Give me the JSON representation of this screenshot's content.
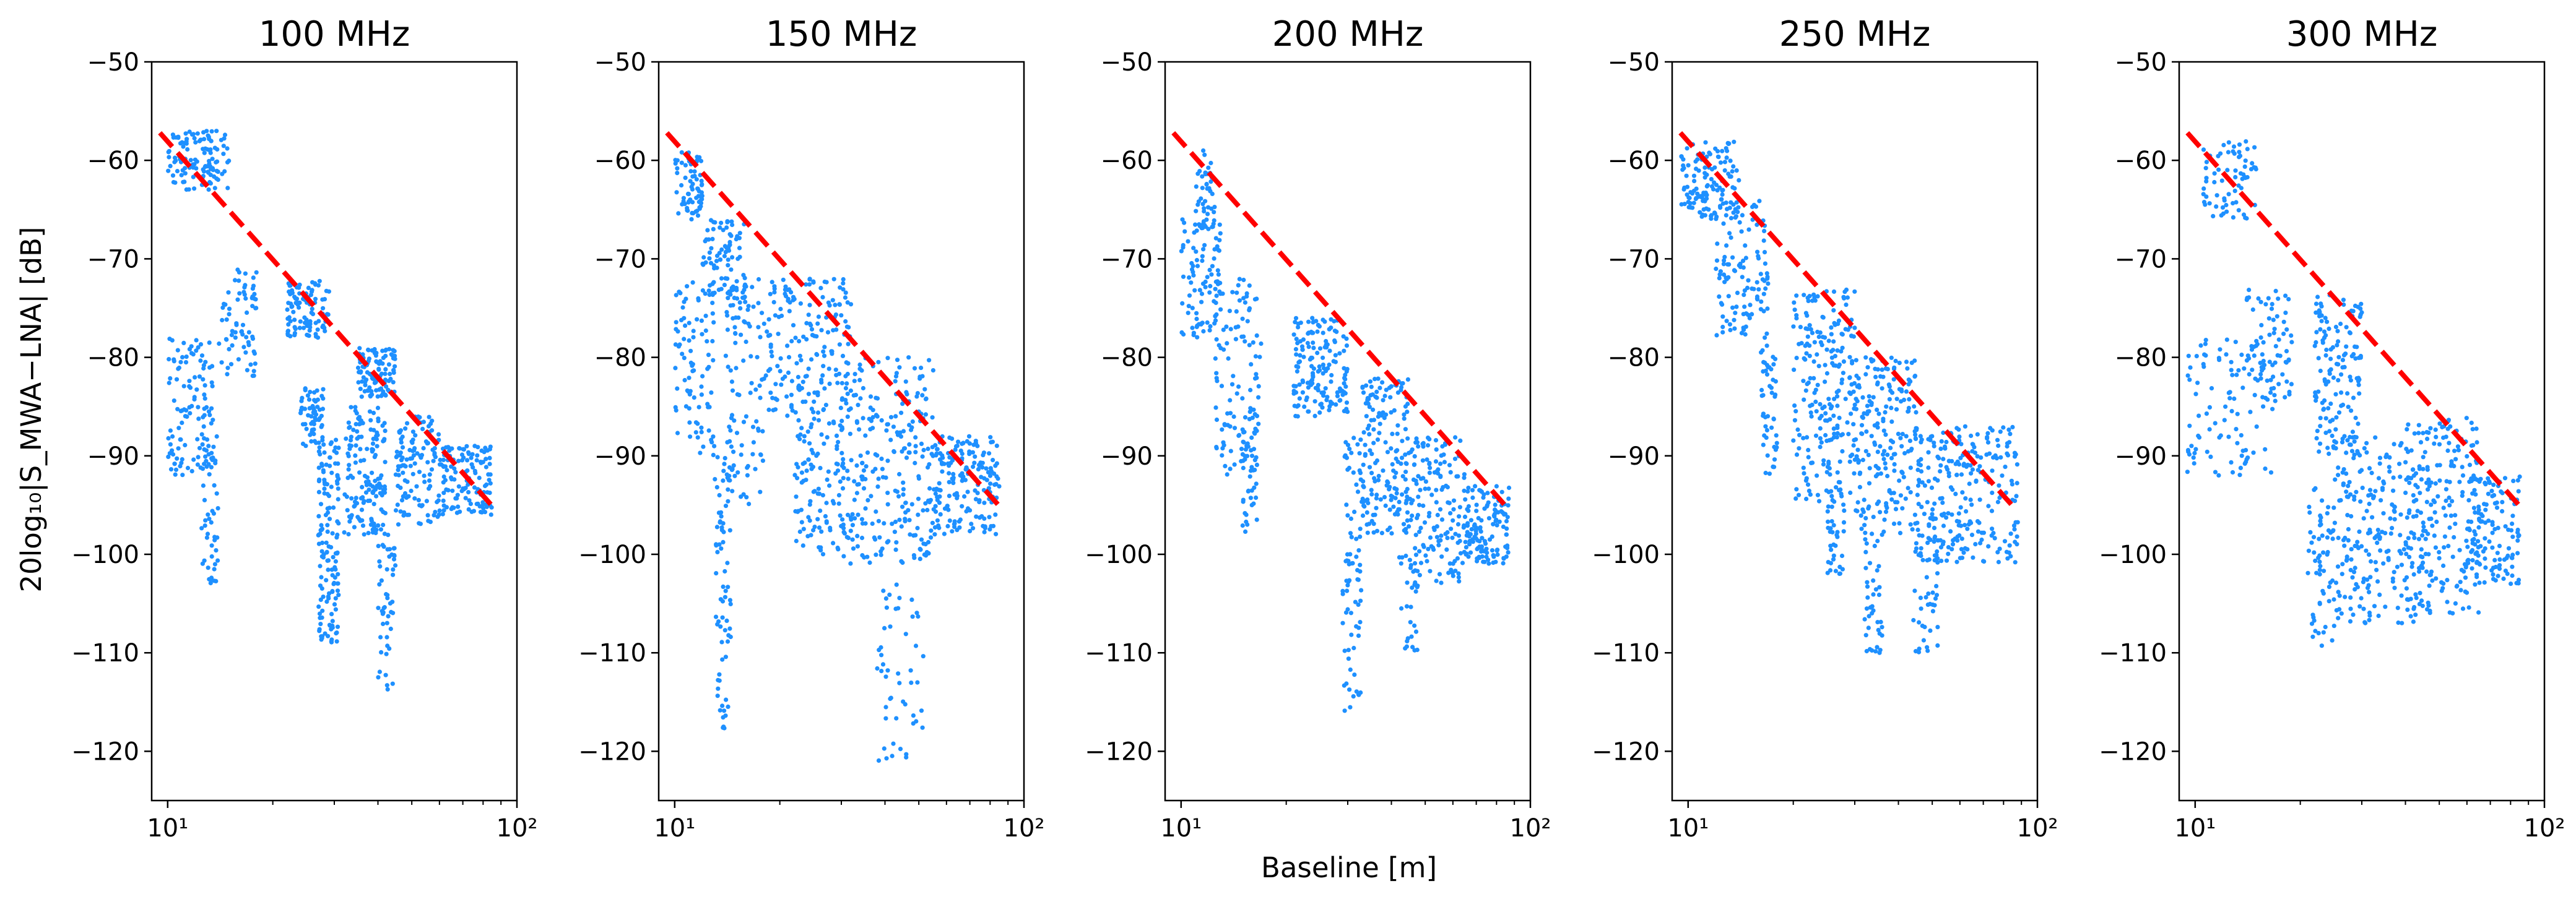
{
  "figure": {
    "ylabel": "20log₁₀|S_MWA−LNA| [dB]",
    "xlabel": "Baseline [m]"
  },
  "colors": {
    "scatter": "#1e90ff",
    "fit_line": "#ff0000",
    "axes": "#000000"
  },
  "chart_data": [
    {
      "type": "scatter",
      "title": "100 MHz",
      "xscale": "log",
      "xlim": [
        9,
        100
      ],
      "ylim": [
        -125,
        -50
      ],
      "xticks": [
        "10¹",
        "10²"
      ],
      "yticks": [
        -50,
        -60,
        -70,
        -80,
        -90,
        -100,
        -110,
        -120
      ],
      "fit_line": {
        "x": [
          9.5,
          87
        ],
        "y": [
          -57.2,
          -95.5
        ]
      },
      "clusters": [
        {
          "xmin": 10,
          "xmax": 15,
          "ymin": -63,
          "ymax": -57,
          "n": 120
        },
        {
          "xmin": 10,
          "xmax": 13.5,
          "ymin": -92,
          "ymax": -78,
          "n": 110
        },
        {
          "xmin": 12.5,
          "xmax": 14,
          "ymin": -103,
          "ymax": -88,
          "n": 50
        },
        {
          "xmin": 14,
          "xmax": 18,
          "ymin": -82,
          "ymax": -71,
          "n": 70
        },
        {
          "xmin": 22,
          "xmax": 29,
          "ymin": -78,
          "ymax": -72,
          "n": 100
        },
        {
          "xmin": 24,
          "xmax": 28,
          "ymin": -89,
          "ymax": -83,
          "n": 60
        },
        {
          "xmin": 27,
          "xmax": 31,
          "ymin": -109,
          "ymax": -88,
          "n": 140
        },
        {
          "xmin": 32,
          "xmax": 42,
          "ymin": -98,
          "ymax": -85,
          "n": 150
        },
        {
          "xmin": 35,
          "xmax": 45,
          "ymin": -84,
          "ymax": -79,
          "n": 100
        },
        {
          "xmin": 40,
          "xmax": 45,
          "ymin": -114,
          "ymax": -97,
          "n": 50
        },
        {
          "xmin": 45,
          "xmax": 60,
          "ymin": -97,
          "ymax": -86,
          "n": 120
        },
        {
          "xmin": 60,
          "xmax": 85,
          "ymin": -96,
          "ymax": -89,
          "n": 130
        }
      ]
    },
    {
      "type": "scatter",
      "title": "150 MHz",
      "xscale": "log",
      "xlim": [
        9,
        100
      ],
      "ylim": [
        -125,
        -50
      ],
      "xticks": [
        "10¹",
        "10²"
      ],
      "yticks": [
        -50,
        -60,
        -70,
        -80,
        -90,
        -100,
        -110,
        -120
      ],
      "fit_line": {
        "x": [
          9.5,
          87
        ],
        "y": [
          -57.2,
          -95.5
        ]
      },
      "clusters": [
        {
          "xmin": 10,
          "xmax": 12,
          "ymin": -66,
          "ymax": -59,
          "n": 70
        },
        {
          "xmin": 10,
          "xmax": 13,
          "ymin": -90,
          "ymax": -72,
          "n": 90
        },
        {
          "xmin": 12,
          "xmax": 16,
          "ymin": -74,
          "ymax": -66,
          "n": 80
        },
        {
          "xmin": 13,
          "xmax": 14.5,
          "ymin": -118,
          "ymax": -90,
          "n": 70
        },
        {
          "xmin": 14,
          "xmax": 18,
          "ymin": -95,
          "ymax": -72,
          "n": 100
        },
        {
          "xmin": 18,
          "xmax": 32,
          "ymin": -86,
          "ymax": -72,
          "n": 180
        },
        {
          "xmin": 22,
          "xmax": 30,
          "ymin": -100,
          "ymax": -86,
          "n": 100
        },
        {
          "xmin": 30,
          "xmax": 55,
          "ymin": -101,
          "ymax": -80,
          "n": 260
        },
        {
          "xmin": 38,
          "xmax": 52,
          "ymin": -121,
          "ymax": -102,
          "n": 50
        },
        {
          "xmin": 55,
          "xmax": 85,
          "ymin": -98,
          "ymax": -88,
          "n": 180
        }
      ]
    },
    {
      "type": "scatter",
      "title": "200 MHz",
      "xscale": "log",
      "xlim": [
        9,
        100
      ],
      "ylim": [
        -125,
        -50
      ],
      "xticks": [
        "10¹",
        "10²"
      ],
      "yticks": [
        -50,
        -60,
        -70,
        -80,
        -90,
        -100,
        -110,
        -120
      ],
      "fit_line": {
        "x": [
          9.5,
          87
        ],
        "y": [
          -57.2,
          -95.5
        ]
      },
      "clusters": [
        {
          "xmin": 10,
          "xmax": 13,
          "ymin": -78,
          "ymax": -66,
          "n": 90
        },
        {
          "xmin": 11,
          "xmax": 12.5,
          "ymin": -67,
          "ymax": -59,
          "n": 40
        },
        {
          "xmin": 12.5,
          "xmax": 17,
          "ymin": -92,
          "ymax": -72,
          "n": 110
        },
        {
          "xmin": 15,
          "xmax": 16.5,
          "ymin": -98,
          "ymax": -85,
          "n": 40
        },
        {
          "xmin": 21,
          "xmax": 30,
          "ymin": -86,
          "ymax": -76,
          "n": 160
        },
        {
          "xmin": 29,
          "xmax": 33,
          "ymin": -116,
          "ymax": -88,
          "n": 80
        },
        {
          "xmin": 33,
          "xmax": 45,
          "ymin": -98,
          "ymax": -82,
          "n": 170
        },
        {
          "xmin": 42,
          "xmax": 48,
          "ymin": -110,
          "ymax": -100,
          "n": 30
        },
        {
          "xmin": 45,
          "xmax": 65,
          "ymin": -103,
          "ymax": -88,
          "n": 150
        },
        {
          "xmin": 65,
          "xmax": 88,
          "ymin": -101,
          "ymax": -93,
          "n": 130
        }
      ]
    },
    {
      "type": "scatter",
      "title": "250 MHz",
      "xscale": "log",
      "xlim": [
        9,
        100
      ],
      "ylim": [
        -125,
        -50
      ],
      "xticks": [
        "10¹",
        "10²"
      ],
      "yticks": [
        -50,
        -60,
        -70,
        -80,
        -90,
        -100,
        -110,
        -120
      ],
      "fit_line": {
        "x": [
          9.5,
          87
        ],
        "y": [
          -57.2,
          -95.5
        ]
      },
      "clusters": [
        {
          "xmin": 9.5,
          "xmax": 14,
          "ymin": -66,
          "ymax": -58,
          "n": 130
        },
        {
          "xmin": 12,
          "xmax": 17,
          "ymin": -78,
          "ymax": -64,
          "n": 110
        },
        {
          "xmin": 16,
          "xmax": 18,
          "ymin": -92,
          "ymax": -78,
          "n": 50
        },
        {
          "xmin": 20,
          "xmax": 30,
          "ymin": -95,
          "ymax": -73,
          "n": 220
        },
        {
          "xmin": 25,
          "xmax": 28,
          "ymin": -102,
          "ymax": -93,
          "n": 40
        },
        {
          "xmin": 30,
          "xmax": 45,
          "ymin": -98,
          "ymax": -80,
          "n": 200
        },
        {
          "xmin": 32,
          "xmax": 36,
          "ymin": -110,
          "ymax": -98,
          "n": 40
        },
        {
          "xmin": 44,
          "xmax": 52,
          "ymin": -110,
          "ymax": -98,
          "n": 40
        },
        {
          "xmin": 45,
          "xmax": 88,
          "ymin": -101,
          "ymax": -87,
          "n": 260
        }
      ]
    },
    {
      "type": "scatter",
      "title": "300 MHz",
      "xscale": "log",
      "xlim": [
        9,
        100
      ],
      "ylim": [
        -125,
        -50
      ],
      "xticks": [
        "10¹",
        "10²"
      ],
      "yticks": [
        -50,
        -60,
        -70,
        -80,
        -90,
        -100,
        -110,
        -120
      ],
      "fit_line": {
        "x": [
          9.5,
          87
        ],
        "y": [
          -57.2,
          -95.5
        ]
      },
      "clusters": [
        {
          "xmin": 10.5,
          "xmax": 15,
          "ymin": -66,
          "ymax": -58,
          "n": 70
        },
        {
          "xmin": 9.5,
          "xmax": 17,
          "ymin": -92,
          "ymax": -78,
          "n": 100
        },
        {
          "xmin": 14,
          "xmax": 19,
          "ymin": -85,
          "ymax": -73,
          "n": 70
        },
        {
          "xmin": 22,
          "xmax": 30,
          "ymin": -90,
          "ymax": -73,
          "n": 140
        },
        {
          "xmin": 21,
          "xmax": 25,
          "ymin": -110,
          "ymax": -93,
          "n": 60
        },
        {
          "xmin": 25,
          "xmax": 45,
          "ymin": -107,
          "ymax": -88,
          "n": 220
        },
        {
          "xmin": 40,
          "xmax": 65,
          "ymin": -106,
          "ymax": -86,
          "n": 200
        },
        {
          "xmin": 60,
          "xmax": 85,
          "ymin": -103,
          "ymax": -92,
          "n": 130
        }
      ]
    }
  ]
}
